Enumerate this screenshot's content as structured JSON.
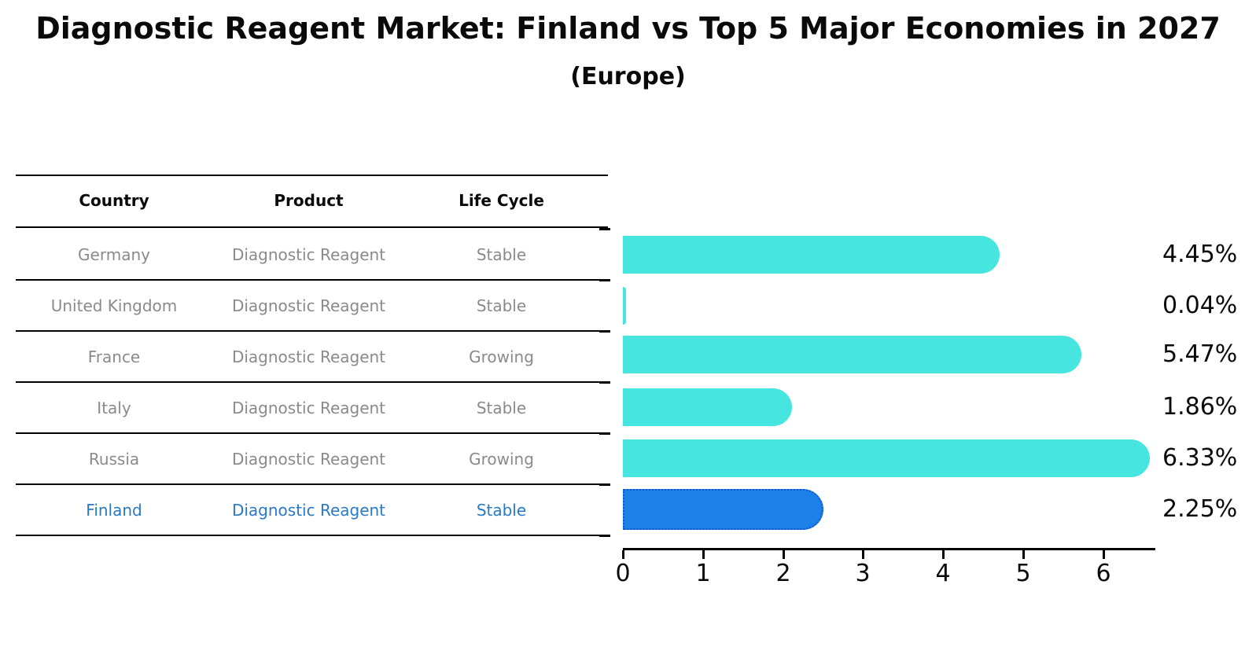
{
  "title": "Diagnostic Reagent Market: Finland vs Top 5 Major Economies in 2027",
  "subtitle": "(Europe)",
  "table": {
    "headers": [
      "Country",
      "Product",
      "Life Cycle"
    ],
    "rows": [
      {
        "country": "Germany",
        "product": "Diagnostic Reagent",
        "life_cycle": "Stable",
        "highlighted": false
      },
      {
        "country": "United Kingdom",
        "product": "Diagnostic Reagent",
        "life_cycle": "Stable",
        "highlighted": false
      },
      {
        "country": "France",
        "product": "Diagnostic Reagent",
        "life_cycle": "Growing",
        "highlighted": false
      },
      {
        "country": "Italy",
        "product": "Diagnostic Reagent",
        "life_cycle": "Stable",
        "highlighted": false
      },
      {
        "country": "Russia",
        "product": "Diagnostic Reagent",
        "life_cycle": "Growing",
        "highlighted": false
      },
      {
        "country": "Finland",
        "product": "Diagnostic Reagent",
        "life_cycle": "Stable",
        "highlighted": true
      }
    ]
  },
  "chart_data": {
    "type": "bar",
    "orientation": "horizontal",
    "categories": [
      "Germany",
      "United Kingdom",
      "France",
      "Italy",
      "Russia",
      "Finland"
    ],
    "values": [
      4.45,
      0.04,
      5.47,
      1.86,
      6.33,
      2.25
    ],
    "value_labels": [
      "4.45%",
      "0.04%",
      "5.47%",
      "1.86%",
      "6.33%",
      "2.25%"
    ],
    "title": "Diagnostic Reagent Market: Finland vs Top 5 Major Economies in 2027 (Europe)",
    "xlabel": "",
    "ylabel": "",
    "xlim": [
      0,
      6.65
    ],
    "x_ticks": [
      "0",
      "1",
      "2",
      "3",
      "4",
      "5",
      "6"
    ],
    "grid": false,
    "legend": "none",
    "bar_color": "#46E5E0",
    "highlight_index": 5,
    "highlight_color": "#1D7FE8",
    "highlight_border_color": "#1057C8"
  },
  "colors": {
    "bar_cyan": "#46E5E0",
    "bar_blue": "#1D7FE8",
    "finland_text_blue": "#2979C9",
    "table_text_gray": "#8A8A8A",
    "axis_black": "#000000"
  }
}
